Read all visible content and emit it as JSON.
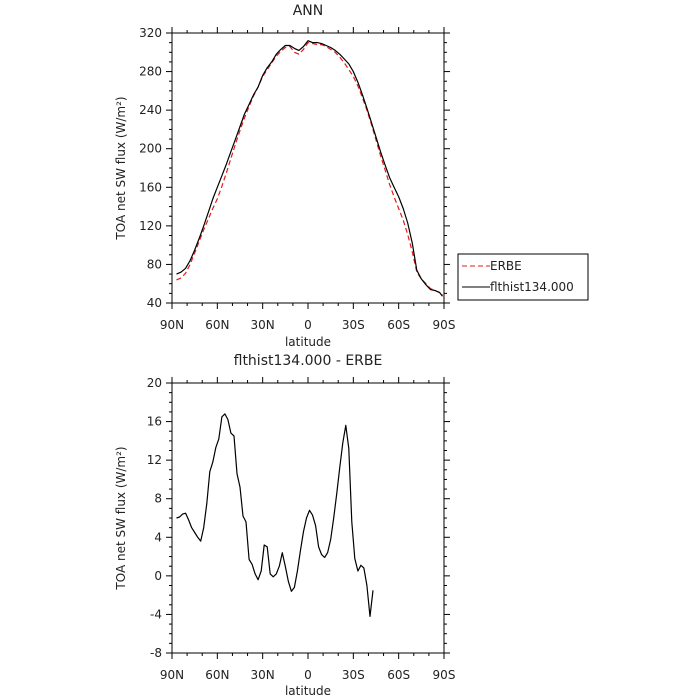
{
  "chart_data": [
    {
      "type": "line",
      "title": "ANN",
      "xlabel": "latitude",
      "ylabel": "TOA net SW flux (W/m²)",
      "xlim": [
        90,
        -90
      ],
      "ylim": [
        40,
        320
      ],
      "xticks": [
        {
          "v": 90,
          "label": "90N"
        },
        {
          "v": 60,
          "label": "60N"
        },
        {
          "v": 30,
          "label": "30N"
        },
        {
          "v": 0,
          "label": "0"
        },
        {
          "v": -30,
          "label": "30S"
        },
        {
          "v": -60,
          "label": "60S"
        },
        {
          "v": -90,
          "label": "90S"
        }
      ],
      "yticks": [
        40,
        80,
        120,
        160,
        200,
        240,
        280,
        320
      ],
      "legend": {
        "placement": "right"
      },
      "series": [
        {
          "name": "ERBE",
          "color": "#e41a1c",
          "dash": "dashed",
          "points": [
            [
              87,
              64
            ],
            [
              84,
              66
            ],
            [
              81,
              71
            ],
            [
              78,
              80
            ],
            [
              75,
              92
            ],
            [
              72,
              104
            ],
            [
              69,
              116
            ],
            [
              66,
              127
            ],
            [
              63,
              138
            ],
            [
              60,
              148
            ],
            [
              57,
              161
            ],
            [
              54,
              175
            ],
            [
              51,
              190
            ],
            [
              48,
              205
            ],
            [
              45,
              219
            ],
            [
              42,
              232
            ],
            [
              39,
              244
            ],
            [
              36,
              255
            ],
            [
              33,
              264
            ],
            [
              30,
              275
            ],
            [
              27,
              282
            ],
            [
              24,
              289
            ],
            [
              21,
              296
            ],
            [
              18,
              301
            ],
            [
              15,
              305
            ],
            [
              12,
              306
            ],
            [
              9,
              300
            ],
            [
              6,
              298
            ],
            [
              3,
              303
            ],
            [
              0,
              310
            ],
            [
              -3,
              309
            ],
            [
              -6,
              308
            ],
            [
              -9,
              308
            ],
            [
              -12,
              306
            ],
            [
              -15,
              303
            ],
            [
              -18,
              300
            ],
            [
              -21,
              295
            ],
            [
              -24,
              289
            ],
            [
              -27,
              282
            ],
            [
              -30,
              275
            ],
            [
              -33,
              265
            ],
            [
              -36,
              253
            ],
            [
              -39,
              240
            ],
            [
              -42,
              225
            ],
            [
              -45,
              209
            ],
            [
              -48,
              193
            ],
            [
              -51,
              178
            ],
            [
              -54,
              163
            ],
            [
              -57,
              150
            ],
            [
              -60,
              138
            ],
            [
              -63,
              126
            ],
            [
              -66,
              111
            ],
            [
              -69,
              93
            ],
            [
              -72,
              72
            ],
            [
              -75,
              65
            ],
            [
              -78,
              60
            ],
            [
              -81,
              55
            ],
            [
              -84,
              53
            ],
            [
              -87,
              51
            ],
            [
              -89,
              48
            ]
          ]
        },
        {
          "name": "flthist134.000",
          "color": "#000000",
          "dash": "solid",
          "points": [
            [
              87,
              70
            ],
            [
              84,
              72
            ],
            [
              81,
              76
            ],
            [
              78,
              84
            ],
            [
              75,
              95
            ],
            [
              72,
              107
            ],
            [
              69,
              120
            ],
            [
              66,
              134
            ],
            [
              63,
              148
            ],
            [
              60,
              160
            ],
            [
              57,
              172
            ],
            [
              54,
              184
            ],
            [
              51,
              197
            ],
            [
              48,
              210
            ],
            [
              45,
              223
            ],
            [
              42,
              236
            ],
            [
              39,
              246
            ],
            [
              36,
              256
            ],
            [
              33,
              264
            ],
            [
              30,
              276
            ],
            [
              27,
              284
            ],
            [
              24,
              290
            ],
            [
              21,
              298
            ],
            [
              18,
              303
            ],
            [
              15,
              307
            ],
            [
              12,
              307
            ],
            [
              9,
              304
            ],
            [
              6,
              302
            ],
            [
              3,
              306
            ],
            [
              0,
              312
            ],
            [
              -3,
              310
            ],
            [
              -6,
              310
            ],
            [
              -9,
              309
            ],
            [
              -12,
              307
            ],
            [
              -15,
              305
            ],
            [
              -18,
              302
            ],
            [
              -21,
              298
            ],
            [
              -24,
              293
            ],
            [
              -27,
              288
            ],
            [
              -30,
              280
            ],
            [
              -33,
              269
            ],
            [
              -36,
              256
            ],
            [
              -39,
              242
            ],
            [
              -42,
              227
            ],
            [
              -45,
              212
            ],
            [
              -48,
              197
            ],
            [
              -51,
              183
            ],
            [
              -54,
              170
            ],
            [
              -57,
              160
            ],
            [
              -60,
              150
            ],
            [
              -63,
              138
            ],
            [
              -66,
              123
            ],
            [
              -69,
              102
            ],
            [
              -72,
              74
            ],
            [
              -75,
              65
            ],
            [
              -78,
              59
            ],
            [
              -81,
              54
            ],
            [
              -84,
              53
            ],
            [
              -87,
              51
            ],
            [
              -89,
              47
            ]
          ]
        }
      ]
    },
    {
      "type": "line",
      "title": "flthist134.000 - ERBE",
      "xlabel": "latitude",
      "ylabel": "TOA net SW flux (W/m²)",
      "xlim": [
        90,
        -90
      ],
      "ylim": [
        -8,
        20
      ],
      "xticks": [
        {
          "v": 90,
          "label": "90N"
        },
        {
          "v": 60,
          "label": "60N"
        },
        {
          "v": 30,
          "label": "30N"
        },
        {
          "v": 0,
          "label": "0"
        },
        {
          "v": -30,
          "label": "30S"
        },
        {
          "v": -60,
          "label": "60S"
        },
        {
          "v": -90,
          "label": "90S"
        }
      ],
      "yticks": [
        -8,
        -4,
        0,
        4,
        8,
        12,
        16,
        20
      ],
      "series": [
        {
          "color": "#000000",
          "dash": "solid",
          "points": [
            [
              87,
              6.0
            ],
            [
              85,
              6.1
            ],
            [
              83,
              6.4
            ],
            [
              81,
              6.5
            ],
            [
              79,
              5.8
            ],
            [
              77,
              5.0
            ],
            [
              75,
              4.5
            ],
            [
              73,
              4.0
            ],
            [
              71,
              3.6
            ],
            [
              69,
              5.0
            ],
            [
              67,
              7.5
            ],
            [
              65,
              10.8
            ],
            [
              63,
              11.8
            ],
            [
              61,
              13.3
            ],
            [
              59,
              14.2
            ],
            [
              57,
              16.5
            ],
            [
              55,
              16.8
            ],
            [
              53,
              16.2
            ],
            [
              51,
              14.8
            ],
            [
              49,
              14.5
            ],
            [
              47,
              10.6
            ],
            [
              45,
              9.2
            ],
            [
              43,
              6.2
            ],
            [
              41,
              5.6
            ],
            [
              39,
              1.7
            ],
            [
              37,
              1.2
            ],
            [
              35,
              0.2
            ],
            [
              33,
              -0.4
            ],
            [
              31,
              0.5
            ],
            [
              29,
              3.2
            ],
            [
              27,
              3.0
            ],
            [
              25,
              0.2
            ],
            [
              23,
              -0.1
            ],
            [
              21,
              0.2
            ],
            [
              19,
              1.0
            ],
            [
              17,
              2.4
            ],
            [
              15,
              1.0
            ],
            [
              13,
              -0.6
            ],
            [
              11,
              -1.6
            ],
            [
              9,
              -1.2
            ],
            [
              7,
              0.5
            ],
            [
              5,
              2.6
            ],
            [
              3,
              4.6
            ],
            [
              1,
              6.0
            ],
            [
              -1,
              6.8
            ],
            [
              -3,
              6.3
            ],
            [
              -5,
              5.2
            ],
            [
              -7,
              3.0
            ],
            [
              -9,
              2.2
            ],
            [
              -11,
              1.9
            ],
            [
              -13,
              2.4
            ],
            [
              -15,
              3.8
            ],
            [
              -17,
              6.0
            ],
            [
              -19,
              8.5
            ],
            [
              -21,
              11.2
            ],
            [
              -23,
              13.8
            ],
            [
              -25,
              15.6
            ],
            [
              -27,
              13.2
            ],
            [
              -29,
              5.6
            ],
            [
              -31,
              1.8
            ],
            [
              -33,
              0.5
            ],
            [
              -35,
              1.1
            ],
            [
              -37,
              0.8
            ],
            [
              -39,
              -1.0
            ],
            [
              -41,
              -4.2
            ],
            [
              -43,
              -1.5
            ]
          ]
        }
      ]
    }
  ]
}
